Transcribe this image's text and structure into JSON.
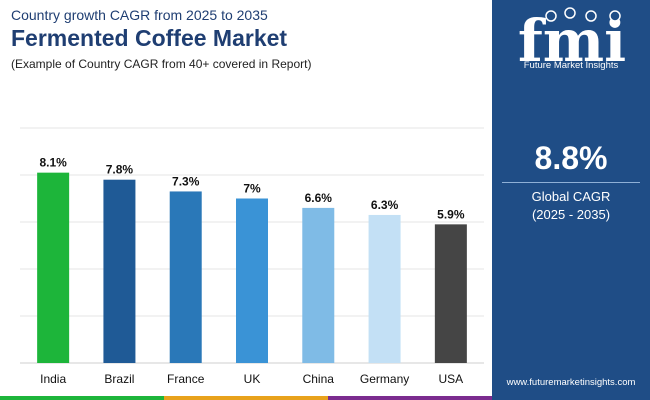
{
  "header": {
    "subtitle": "Country growth CAGR from 2025 to 2035",
    "title": "Fermented Coffee Market",
    "note": "(Example of Country CAGR from 40+ covered in Report)"
  },
  "chart_data": {
    "type": "bar",
    "categories": [
      "India",
      "Brazil",
      "France",
      "UK",
      "China",
      "Germany",
      "USA"
    ],
    "values": [
      8.1,
      7.8,
      7.3,
      7,
      6.6,
      6.3,
      5.9
    ],
    "value_labels": [
      "8.1%",
      "7.8%",
      "7.3%",
      "7%",
      "6.6%",
      "6.3%",
      "5.9%"
    ],
    "colors": [
      "#1db53a",
      "#1f5a96",
      "#2a78b8",
      "#3a93d6",
      "#7fbbe6",
      "#c3e0f5",
      "#454545"
    ],
    "ylim": [
      0,
      10
    ],
    "grid": true,
    "title": "Fermented Coffee Market",
    "xlabel": "",
    "ylabel": ""
  },
  "sidebar": {
    "logo_letters": "fmi",
    "logo_text": "Future Market Insights",
    "cagr_value": "8.8%",
    "cagr_label": "Global CAGR",
    "cagr_range": "(2025 - 2035)",
    "website": "www.futuremarketinsights.com"
  },
  "palette": {
    "navy": "#1f4d86",
    "title": "#1f3e72",
    "bottom_bar": [
      "#1db53a",
      "#e8a21c",
      "#7b2c8f"
    ]
  }
}
